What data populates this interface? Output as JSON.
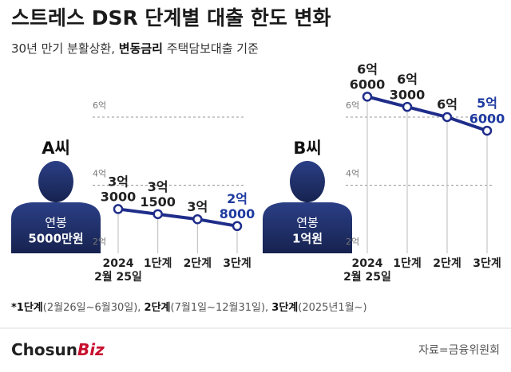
{
  "header": {
    "title": "스트레스 DSR 단계별 대출 한도 변화",
    "subtitle": [
      {
        "text": "30년 만기 분활상환, ",
        "bold": false
      },
      {
        "text": "변동금리",
        "bold": true
      },
      {
        "text": " 주택담보대출 기준",
        "bold": false
      }
    ]
  },
  "chart_data": [
    {
      "type": "line",
      "person": "A씨",
      "salary": [
        "연봉",
        "5000만원"
      ],
      "categories": [
        "2024\n2월 25일",
        "1단계",
        "2단계",
        "3단계"
      ],
      "series": [
        {
          "color": "#1f2d8a",
          "values": [
            3.3,
            3.15,
            3.0,
            2.8
          ],
          "value_labels": [
            "3억\n3000",
            "3억\n1500",
            "3억",
            "2억\n8000"
          ],
          "value_label_colors": [
            "#222222",
            "#222222",
            "#222222",
            "#1e3aa0"
          ]
        }
      ],
      "ylim": [
        2,
        6
      ],
      "yticks": [
        {
          "value": 2,
          "label": "2억"
        },
        {
          "value": 4,
          "label": "4억"
        },
        {
          "value": 6,
          "label": "6억"
        }
      ],
      "grid": true
    },
    {
      "type": "line",
      "person": "B씨",
      "salary": [
        "연봉",
        "1억원"
      ],
      "categories": [
        "2024\n2월 25일",
        "1단계",
        "2단계",
        "3단계"
      ],
      "series": [
        {
          "color": "#1f2d8a",
          "values": [
            6.6,
            6.3,
            6.0,
            5.6
          ],
          "value_labels": [
            "6억\n6000",
            "6억\n3000",
            "6억",
            "5억\n6000"
          ],
          "value_label_colors": [
            "#222222",
            "#222222",
            "#222222",
            "#1e3aa0"
          ]
        }
      ],
      "ylim": [
        2,
        6
      ],
      "yticks": [
        {
          "value": 2,
          "label": "2억"
        },
        {
          "value": 4,
          "label": "4억"
        },
        {
          "value": 6,
          "label": "6억"
        }
      ],
      "grid": true
    }
  ],
  "footnote": [
    {
      "text": "*1단계",
      "bold": true
    },
    {
      "text": "(2월26일~6월30일), ",
      "bold": false
    },
    {
      "text": "2단계",
      "bold": true
    },
    {
      "text": "(7월1일~12월31일), ",
      "bold": false
    },
    {
      "text": "3단계",
      "bold": true
    },
    {
      "text": "(2025년1월~)",
      "bold": false
    }
  ],
  "logo": {
    "main": "Chosun",
    "accent": "Biz"
  },
  "source": "자료=금융위원회"
}
